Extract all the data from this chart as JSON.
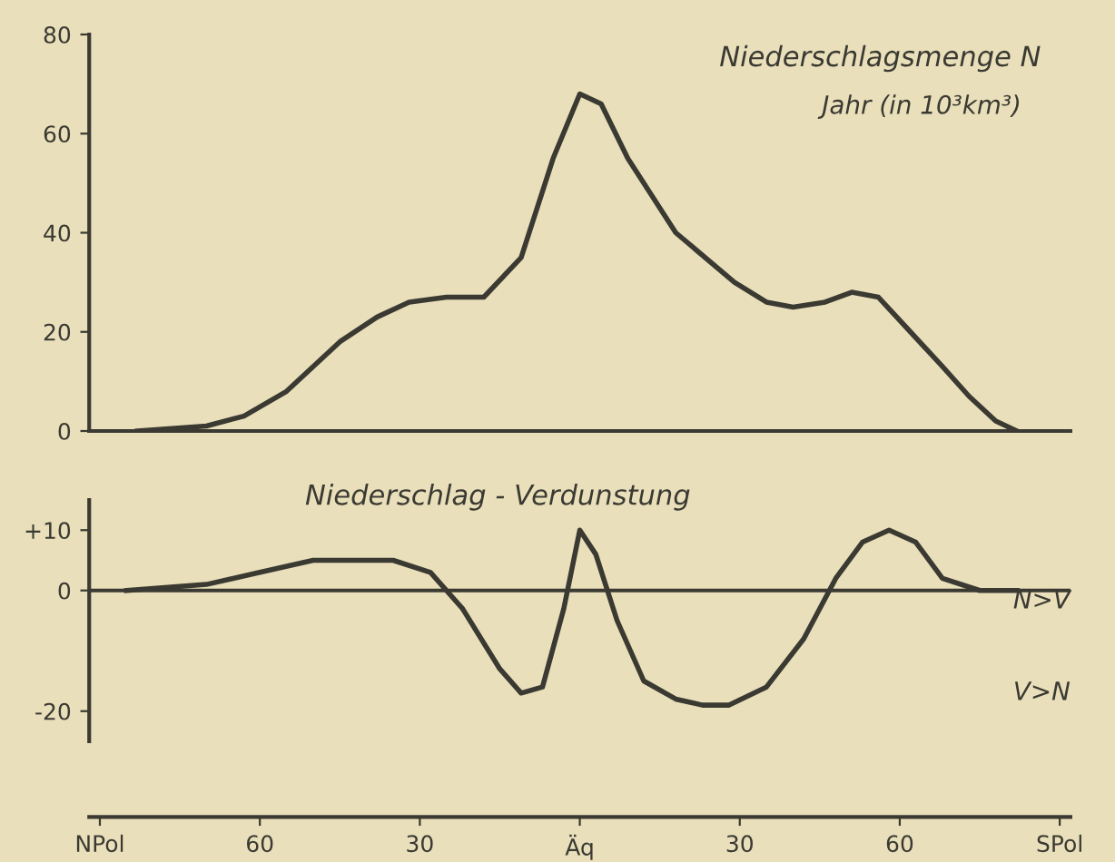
{
  "chart_data": [
    {
      "type": "line",
      "title": "Niederschlagsmenge N",
      "subtitle": "Jahr (in 10³km³)",
      "x": [
        -83,
        -70,
        -63,
        -55,
        -45,
        -38,
        -32,
        -25,
        -18,
        -11,
        -5,
        0,
        4,
        9,
        18,
        29,
        35,
        40,
        46,
        51,
        56,
        62,
        68,
        73,
        78,
        82
      ],
      "series": [
        {
          "color": "#3a3a32",
          "values": [
            0,
            1,
            3,
            8,
            18,
            23,
            26,
            27,
            27,
            35,
            55,
            68,
            66,
            55,
            40,
            30,
            26,
            25,
            26,
            28,
            27,
            20,
            13,
            7,
            2,
            0
          ]
        }
      ],
      "xlim": [
        -92,
        92
      ],
      "ylim": [
        0,
        80
      ],
      "yticks": [
        0,
        20,
        40,
        60,
        80
      ],
      "tick_labels": "y",
      "grid": false,
      "legend": false
    },
    {
      "type": "line",
      "title": "Niederschlag - Verdunstung",
      "annotations": [
        "N>V",
        "V>N"
      ],
      "x": [
        -85,
        -70,
        -60,
        -50,
        -43,
        -35,
        -28,
        -22,
        -15,
        -11,
        -7,
        -3,
        0,
        3,
        7,
        12,
        18,
        23,
        28,
        35,
        42,
        48,
        53,
        58,
        63,
        68,
        75,
        82
      ],
      "series": [
        {
          "color": "#3a3a32",
          "values": [
            0,
            1,
            3,
            5,
            5,
            5,
            3,
            -3,
            -13,
            -17,
            -16,
            -3,
            10,
            6,
            -5,
            -15,
            -18,
            -19,
            -19,
            -16,
            -8,
            2,
            8,
            10,
            8,
            2,
            0,
            0
          ]
        }
      ],
      "xlim": [
        -92,
        92
      ],
      "ylim": [
        -25,
        15
      ],
      "xticks": [
        {
          "value": -90,
          "label": "NPol"
        },
        {
          "value": -60,
          "label": "60"
        },
        {
          "value": -30,
          "label": "30"
        },
        {
          "value": 0,
          "label": "Äq"
        },
        30,
        60,
        {
          "value": 90,
          "label": "SPol"
        }
      ],
      "yticks": [
        {
          "value": 10,
          "label": "+10"
        },
        0,
        -20
      ],
      "ref_lines": [
        {
          "axis": "y",
          "value": 0,
          "label": null
        }
      ],
      "grid": false,
      "legend": false
    }
  ]
}
